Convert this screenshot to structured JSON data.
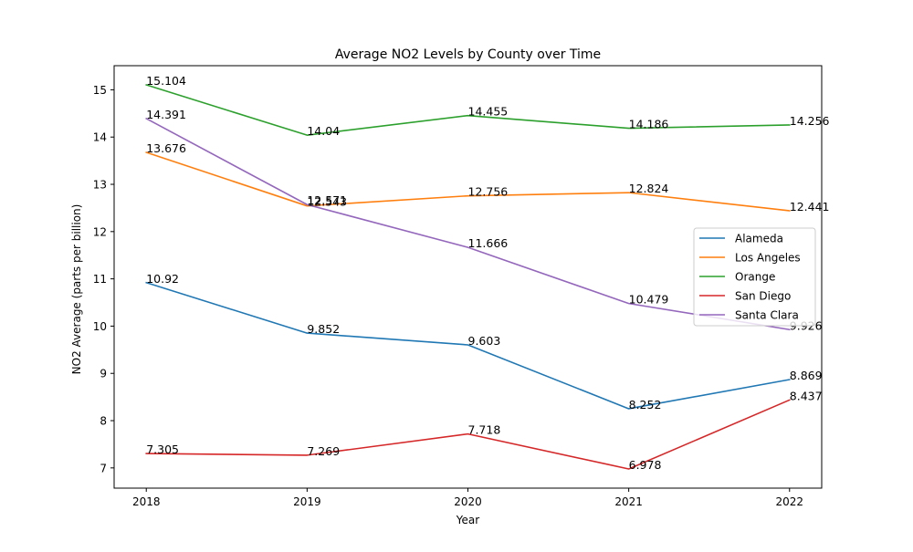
{
  "chart_data": {
    "type": "line",
    "title": "Average NO2 Levels by County over Time",
    "xlabel": "Year",
    "ylabel": "NO2 Average (parts per billion)",
    "x": [
      2018,
      2019,
      2020,
      2021,
      2022
    ],
    "x_tick_labels": [
      "2018",
      "2019",
      "2020",
      "2021",
      "2022"
    ],
    "xlim": [
      2017.8,
      2022.2
    ],
    "ylim": [
      6.572,
      15.51
    ],
    "y_ticks": [
      7,
      8,
      9,
      10,
      11,
      12,
      13,
      14,
      15
    ],
    "y_tick_labels": [
      "7",
      "8",
      "9",
      "10",
      "11",
      "12",
      "13",
      "14",
      "15"
    ],
    "grid": false,
    "legend_position": "center-right",
    "series": [
      {
        "name": "Alameda",
        "color": "#1f77b4",
        "values": [
          10.92,
          9.852,
          9.603,
          8.252,
          8.869
        ],
        "labels": [
          "10.92",
          "9.852",
          "9.603",
          "8.252",
          "8.869"
        ]
      },
      {
        "name": "Los Angeles",
        "color": "#ff7f0e",
        "values": [
          13.676,
          12.543,
          12.756,
          12.824,
          12.441
        ],
        "labels": [
          "13.676",
          "12.543",
          "12.756",
          "12.824",
          "12.441"
        ]
      },
      {
        "name": "Orange",
        "color": "#2ca02c",
        "values": [
          15.104,
          14.04,
          14.455,
          14.186,
          14.256
        ],
        "labels": [
          "15.104",
          "14.04",
          "14.455",
          "14.186",
          "14.256"
        ]
      },
      {
        "name": "San Diego",
        "color": "#d62728",
        "values": [
          7.305,
          7.269,
          7.718,
          6.978,
          8.437
        ],
        "labels": [
          "7.305",
          "7.269",
          "7.718",
          "6.978",
          "8.437"
        ]
      },
      {
        "name": "Santa Clara",
        "color": "#9467bd",
        "values": [
          14.391,
          12.571,
          11.666,
          10.479,
          9.926
        ],
        "labels": [
          "14.391",
          "12.571",
          "11.666",
          "10.479",
          "9.926"
        ]
      }
    ]
  }
}
